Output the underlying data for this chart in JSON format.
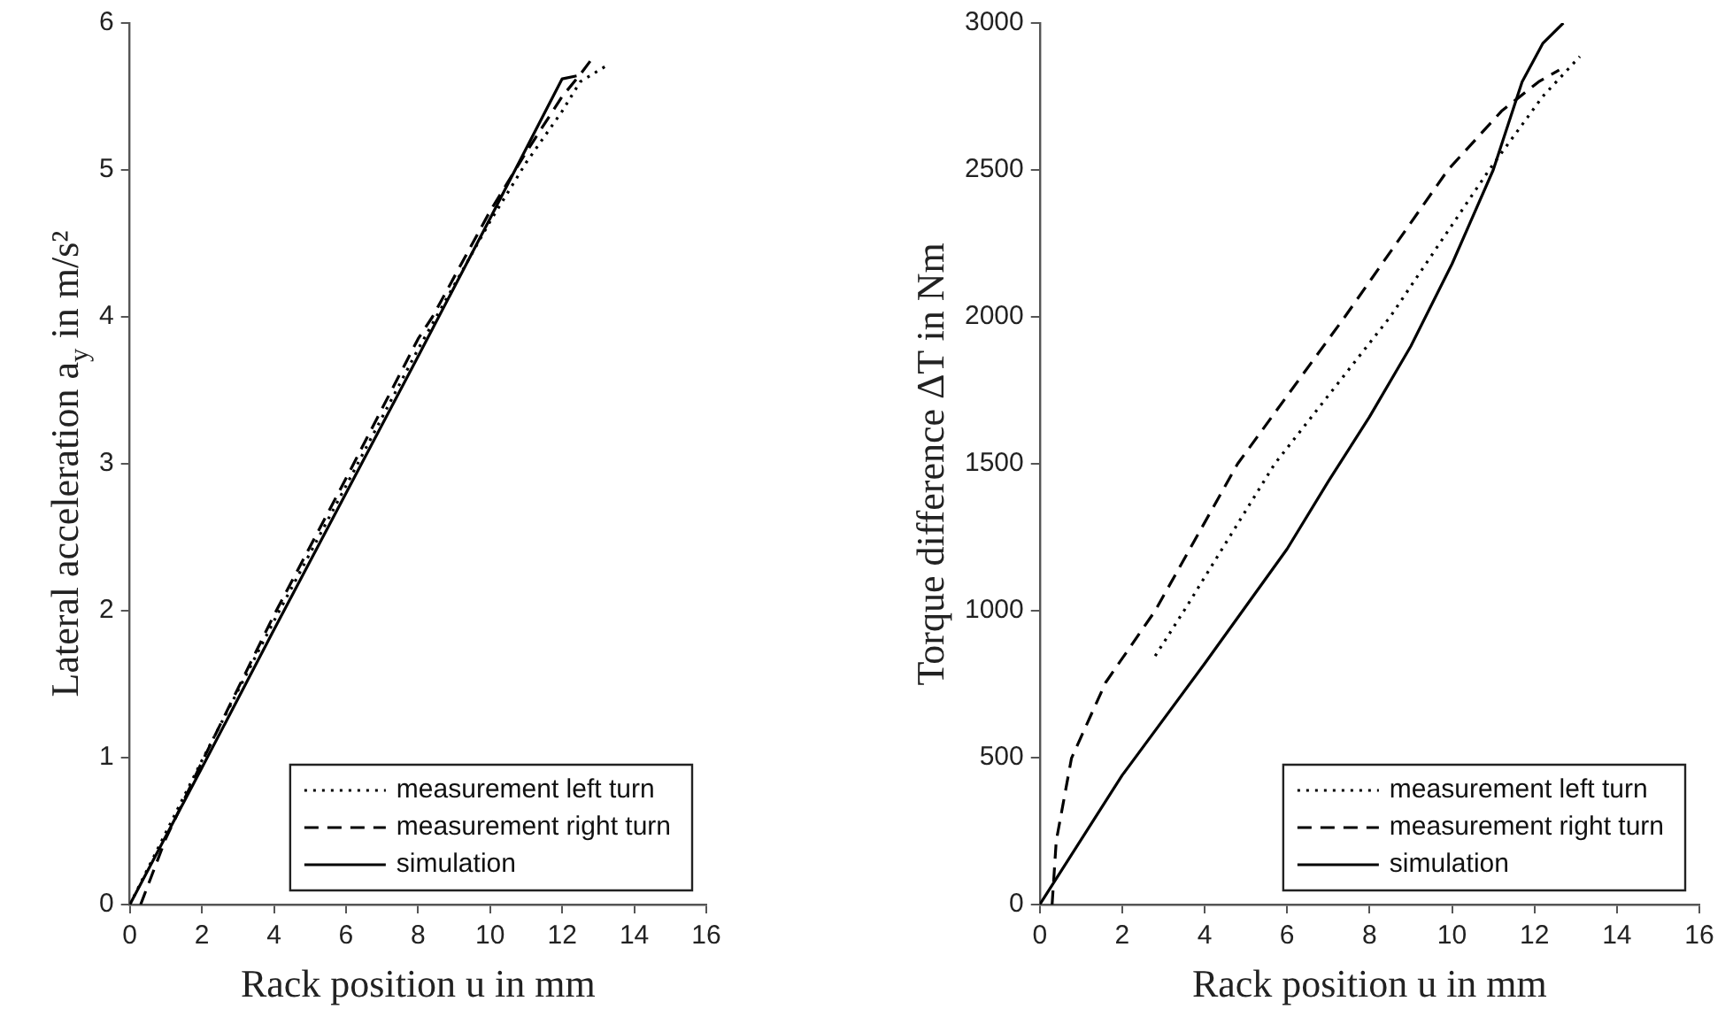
{
  "chart_data": [
    {
      "type": "line",
      "xlabel": "Rack position u in mm",
      "ylabel": "Lateral acceleration a$_{y}$ in m/s²",
      "xlim": [
        0,
        16
      ],
      "xticks": [
        0,
        2,
        4,
        6,
        8,
        10,
        12,
        14,
        16
      ],
      "ylim": [
        0,
        6
      ],
      "yticks": [
        0,
        1,
        2,
        3,
        4,
        5,
        6
      ],
      "legend": "bottom right",
      "series": [
        {
          "name": "measurement left turn",
          "color": "#000000",
          "line_style": "dotted",
          "x": [
            0,
            2,
            4,
            6,
            8,
            10,
            11,
            12,
            12.5,
            13.3
          ],
          "values": [
            0,
            0.98,
            1.93,
            2.85,
            3.78,
            4.65,
            5.05,
            5.4,
            5.6,
            5.72
          ]
        },
        {
          "name": "measurement right turn",
          "color": "#000000",
          "line_style": "dashed",
          "x": [
            0.3,
            1,
            2,
            4,
            6,
            8,
            8.4,
            10,
            11,
            12,
            12.5,
            12.9
          ],
          "values": [
            0,
            0.45,
            0.97,
            1.97,
            2.9,
            3.85,
            4.0,
            4.72,
            5.12,
            5.5,
            5.65,
            5.78
          ]
        },
        {
          "name": "simulation",
          "color": "#000000",
          "line_style": "solid",
          "x": [
            0,
            2,
            4,
            6,
            8,
            10,
            12,
            12.4
          ],
          "values": [
            0,
            0.93,
            1.87,
            2.8,
            3.73,
            4.67,
            5.62,
            5.64
          ]
        }
      ]
    },
    {
      "type": "line",
      "xlabel": "Rack position u in mm",
      "ylabel": "Torque difference ΔT in Nm",
      "xlim": [
        0,
        16
      ],
      "xticks": [
        0,
        2,
        4,
        6,
        8,
        10,
        12,
        14,
        16
      ],
      "ylim": [
        0,
        3000
      ],
      "yticks": [
        0,
        500,
        1000,
        1500,
        2000,
        2500,
        3000
      ],
      "legend": "bottom right",
      "series": [
        {
          "name": "measurement left turn",
          "color": "#000000",
          "line_style": "dotted",
          "x": [
            2.8,
            3.5,
            5.7,
            8.5,
            10.9,
            12.2,
            13.1
          ],
          "values": [
            846,
            1000,
            1500,
            2000,
            2500,
            2750,
            2886
          ]
        },
        {
          "name": "measurement right turn",
          "color": "#000000",
          "line_style": "dashed",
          "x": [
            0.3,
            0.4,
            0.77,
            1.6,
            2.8,
            4.8,
            7.4,
            9.9,
            11.2,
            12.1,
            12.6
          ],
          "values": [
            0,
            216,
            498,
            756,
            1000,
            1500,
            2000,
            2500,
            2700,
            2800,
            2840
          ]
        },
        {
          "name": "simulation",
          "color": "#000000",
          "line_style": "solid",
          "x": [
            0,
            2,
            4,
            6,
            7,
            8,
            9,
            10,
            11,
            11.7,
            12.2,
            12.7
          ],
          "values": [
            0,
            440,
            820,
            1210,
            1440,
            1660,
            1900,
            2180,
            2500,
            2800,
            2930,
            3000
          ]
        }
      ]
    }
  ]
}
